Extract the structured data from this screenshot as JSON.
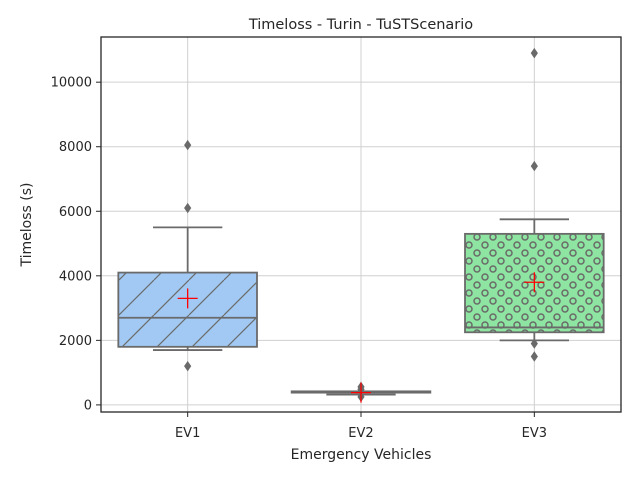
{
  "chart_data": {
    "type": "box",
    "title": "Timeloss  - Turin - TuSTScenario",
    "xlabel": "Emergency Vehicles",
    "ylabel": "Timeloss (s)",
    "ylim": [
      -220,
      11400
    ],
    "yticks": [
      0,
      2000,
      4000,
      6000,
      8000,
      10000
    ],
    "grid": true,
    "categories": [
      "EV1",
      "EV2",
      "EV3"
    ],
    "boxes": [
      {
        "name": "EV1",
        "whisker_low": 1700,
        "q1": 1800,
        "median": 2700,
        "q3": 4100,
        "whisker_high": 5500,
        "mean": 3300,
        "outliers": [
          1200,
          6100,
          8050
        ],
        "color": "#a1c9f4",
        "hatch": "diagonal"
      },
      {
        "name": "EV2",
        "whisker_low": 320,
        "q1": 380,
        "median": 400,
        "q3": 420,
        "whisker_high": 420,
        "mean": 380,
        "outliers": [
          250,
          480,
          560
        ],
        "color": "#ff9f9b",
        "hatch": "none"
      },
      {
        "name": "EV3",
        "whisker_low": 2000,
        "q1": 2250,
        "median": 2400,
        "q3": 5300,
        "whisker_high": 5750,
        "mean": 3800,
        "outliers": [
          1500,
          1900,
          7400,
          10900
        ],
        "color": "#8de5a1",
        "hatch": "circles"
      }
    ],
    "styles": {
      "line_color": "#6a6a6a",
      "mean_marker_color": "#ff0000",
      "grid_color": "#d0d0d0",
      "axes_color": "#262626"
    }
  }
}
